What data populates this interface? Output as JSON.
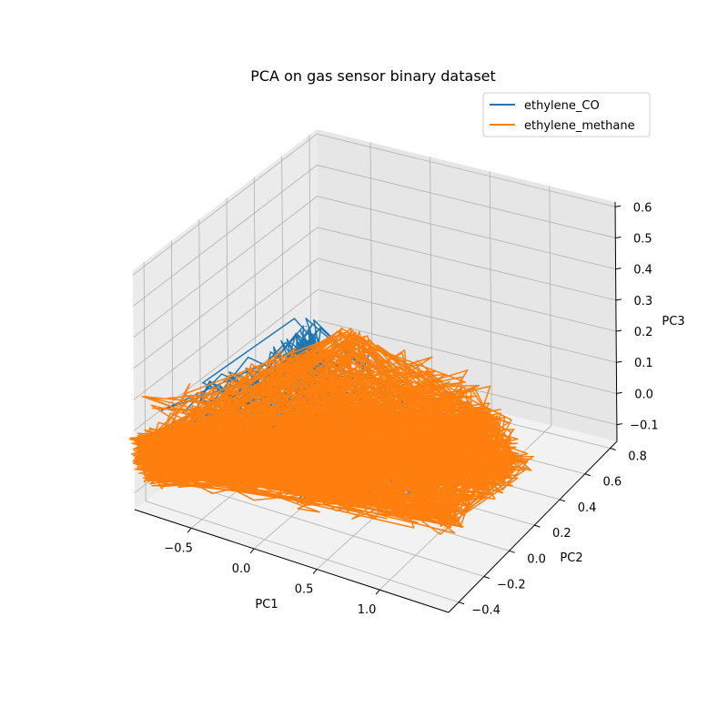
{
  "chart_data": {
    "type": "line",
    "projection": "3d",
    "title": "PCA on gas sensor binary dataset",
    "xlabel": "PC1",
    "ylabel": "PC2",
    "zlabel": "PC3",
    "xticks": [
      "−0.5",
      "0.0",
      "0.5",
      "1.0"
    ],
    "yticks": [
      "−0.4",
      "−0.2",
      "0.0",
      "0.2",
      "0.4",
      "0.6",
      "0.8"
    ],
    "zticks": [
      "−0.1",
      "0.0",
      "0.1",
      "0.2",
      "0.3",
      "0.4",
      "0.5",
      "0.6"
    ],
    "legend_placement": "top-right",
    "grid": true,
    "series": [
      {
        "name": "ethylene_CO",
        "color": "#1f77b4",
        "note_values": "dense trajectory, mostly hidden behind ethylene_methane",
        "x": [
          -0.8,
          -0.35,
          0.3,
          0.7,
          1.0,
          -0.3,
          0.2
        ],
        "y": [
          -0.35,
          -0.4,
          -0.35,
          -0.4,
          0.2,
          0.2,
          -0.2
        ],
        "z": [
          0.0,
          0.2,
          0.05,
          0.15,
          0.02,
          0.32,
          0.1
        ]
      },
      {
        "name": "ethylene_methane",
        "color": "#ff7f0e",
        "x": [
          -0.9,
          -0.8,
          1.05,
          1.15,
          0.8,
          0.05,
          -0.9
        ],
        "y": [
          -0.4,
          -0.42,
          -0.1,
          0.3,
          0.45,
          0.15,
          -0.4
        ],
        "z": [
          0.0,
          -0.05,
          -0.02,
          0.05,
          0.1,
          0.35,
          0.05
        ]
      }
    ]
  }
}
